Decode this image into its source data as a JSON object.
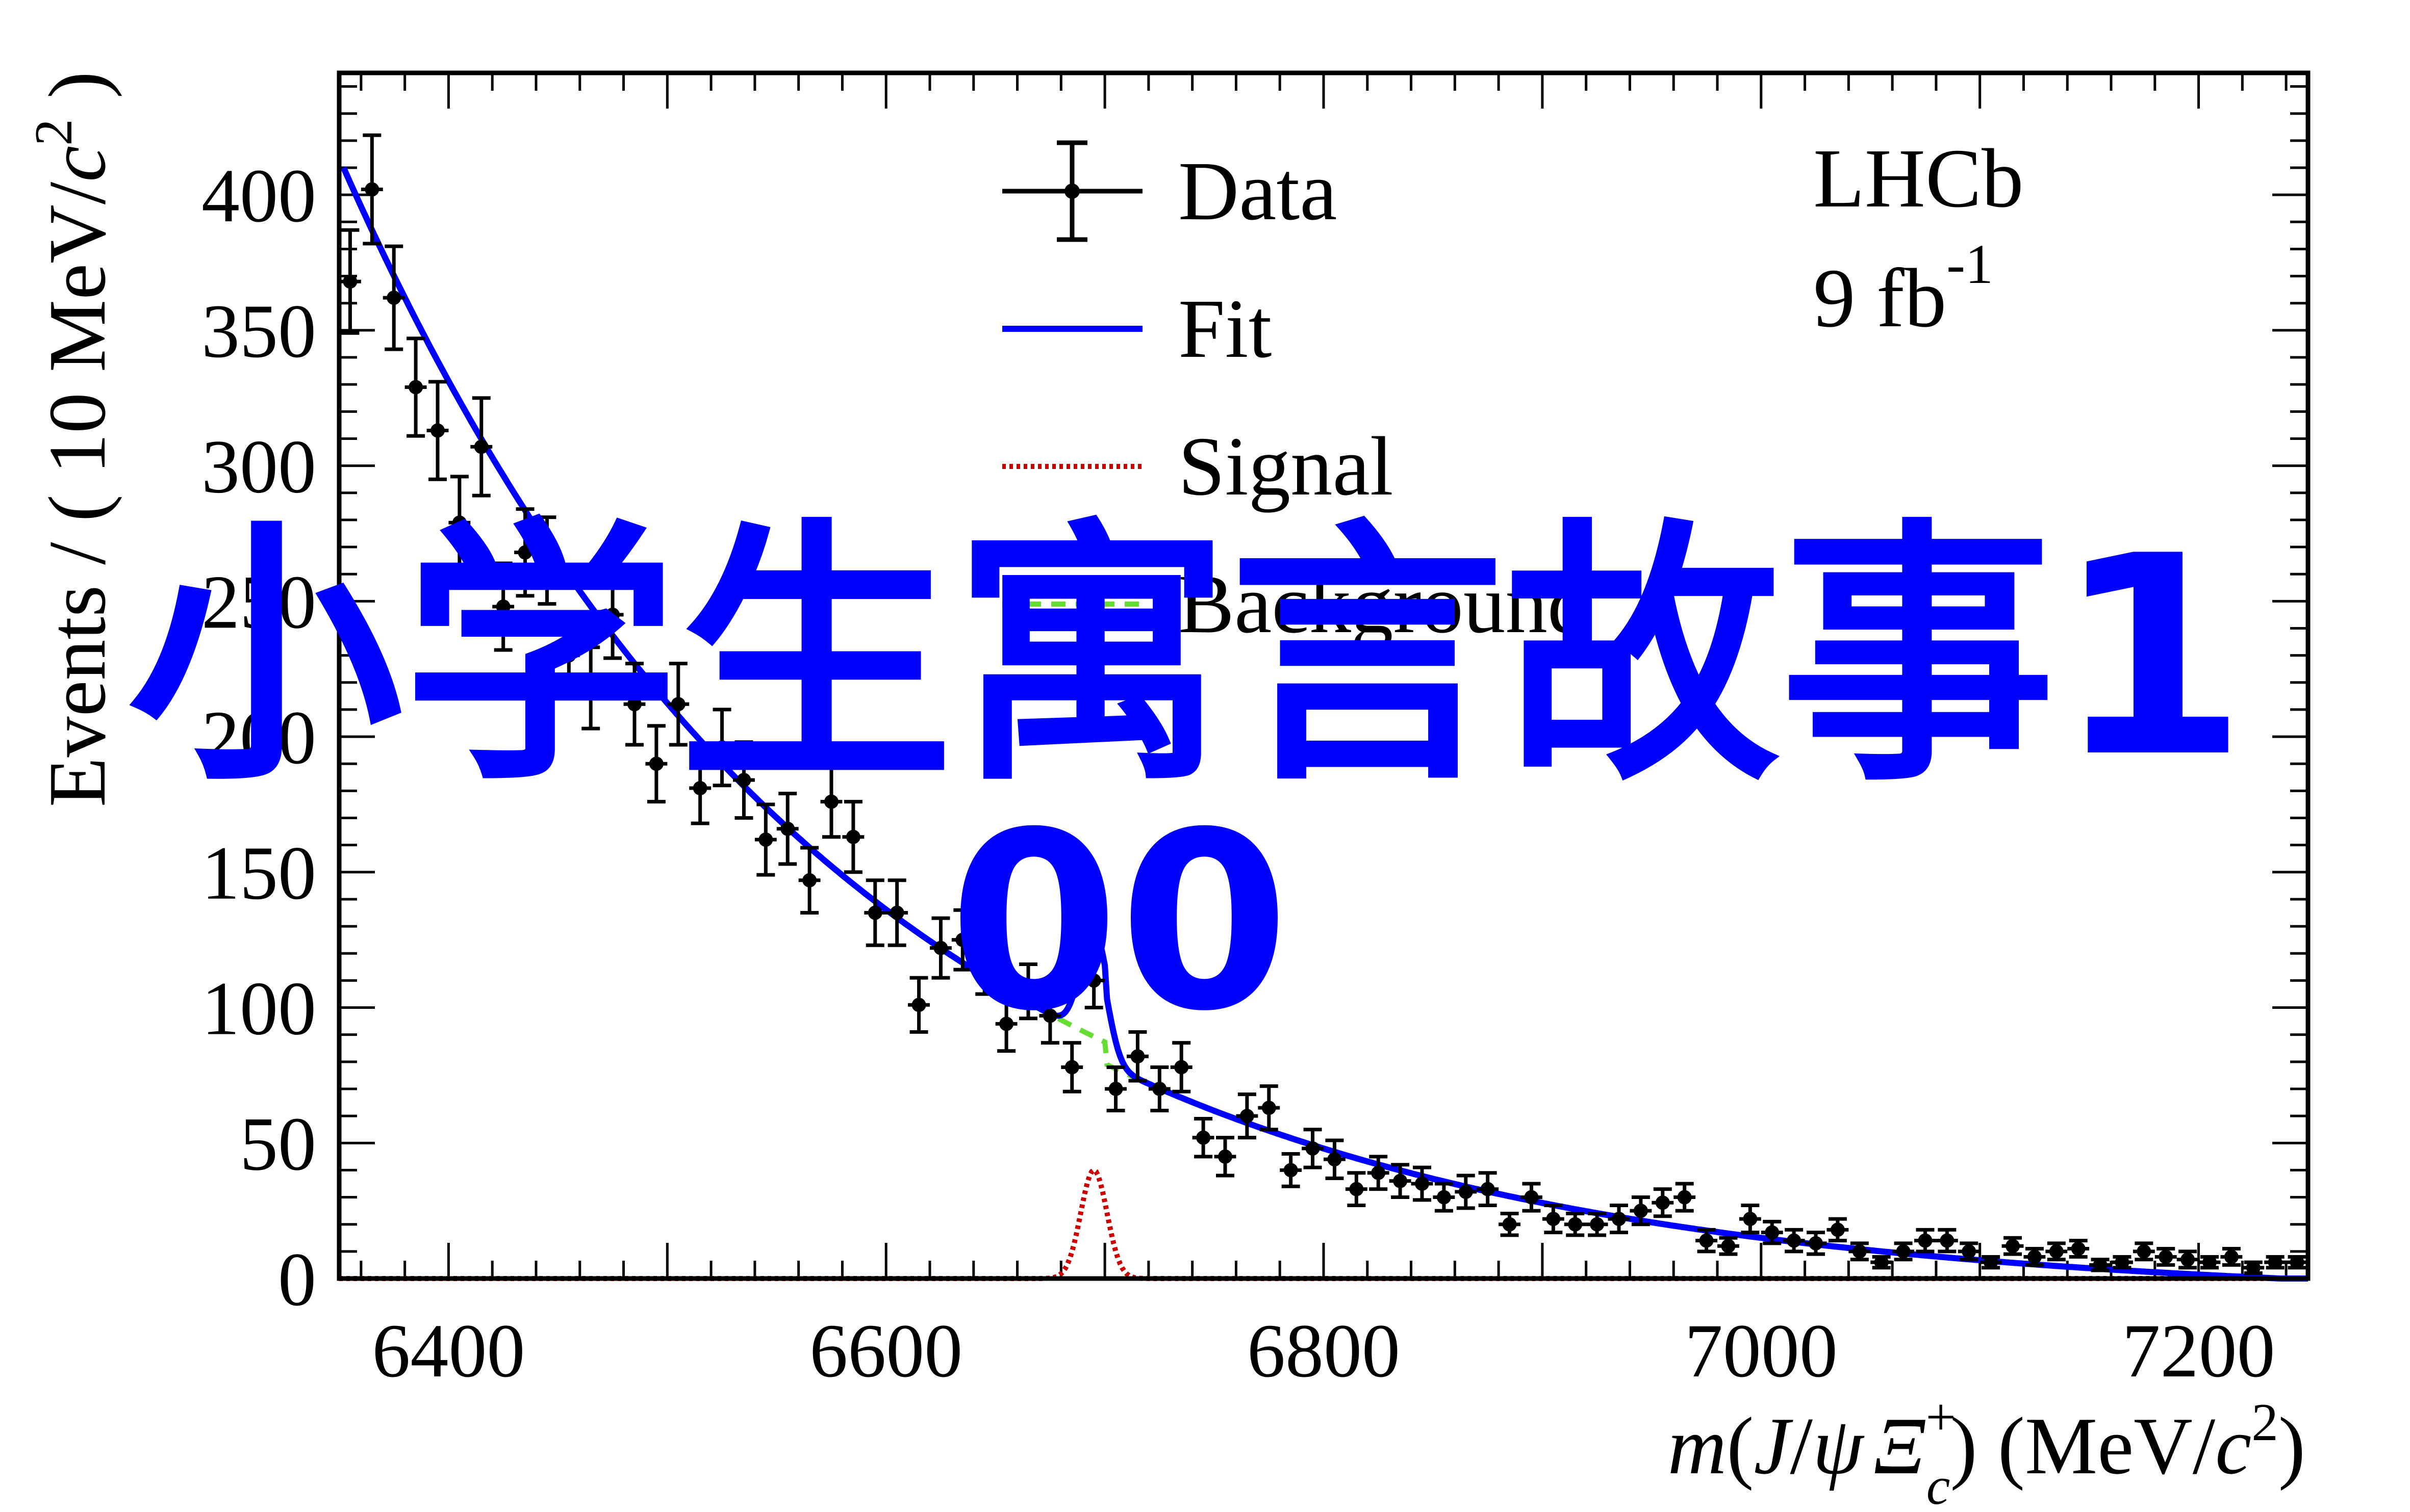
{
  "chart_data": {
    "type": "scatter",
    "title": "",
    "xlabel": {
      "m": "m",
      "open": "(",
      "J": "J",
      "slash": "/",
      "psi": "ψ",
      "xi": "Ξ",
      "xi_sup": "+",
      "xi_sub": "c",
      "close": ")",
      "units_open": "(MeV/",
      "c": "c",
      "c_sup": "2",
      "units_close": ")"
    },
    "ylabel": {
      "prefix": "Events / ( 10 MeV/",
      "c": "c",
      "c_sup": "2",
      "suffix": " )"
    },
    "xlim": [
      6350,
      7250
    ],
    "ylim": [
      0,
      445
    ],
    "x_ticks": [
      "6400",
      "6600",
      "6800",
      "7000",
      "7200"
    ],
    "y_ticks": [
      "0",
      "50",
      "100",
      "150",
      "200",
      "250",
      "300",
      "350",
      "400"
    ],
    "annotation": {
      "experiment": "LHCb",
      "lumi_value": "9 fb",
      "lumi_sup": "-1"
    },
    "legend": {
      "placement": "top-center",
      "entries": [
        {
          "label": "Data",
          "style": "errorbar",
          "color": "#000000"
        },
        {
          "label": "Fit",
          "style": "solid",
          "color": "#0000ff"
        },
        {
          "label": "Signal",
          "style": "dotted",
          "color": "#cc0000"
        },
        {
          "label": "Background",
          "style": "dashed",
          "color": "#66dd33"
        }
      ]
    },
    "series": [
      {
        "name": "Data",
        "x": [
          6355,
          6365,
          6375,
          6385,
          6395,
          6405,
          6415,
          6425,
          6435,
          6445,
          6455,
          6465,
          6475,
          6485,
          6495,
          6505,
          6515,
          6525,
          6535,
          6545,
          6555,
          6565,
          6575,
          6585,
          6595,
          6605,
          6615,
          6625,
          6635,
          6645,
          6655,
          6665,
          6675,
          6685,
          6695,
          6705,
          6715,
          6725,
          6735,
          6745,
          6755,
          6765,
          6775,
          6785,
          6795,
          6805,
          6815,
          6825,
          6835,
          6845,
          6855,
          6865,
          6875,
          6885,
          6895,
          6905,
          6915,
          6925,
          6935,
          6945,
          6955,
          6965,
          6975,
          6985,
          6995,
          7005,
          7015,
          7025,
          7035,
          7045,
          7055,
          7065,
          7075,
          7085,
          7095,
          7105,
          7115,
          7125,
          7135,
          7145,
          7155,
          7165,
          7175,
          7185,
          7195,
          7205,
          7215,
          7225,
          7235,
          7245
        ],
        "y": [
          368,
          402,
          362,
          329,
          313,
          279,
          307,
          248,
          268,
          265,
          230,
          218,
          245,
          212,
          190,
          212,
          181,
          196,
          184,
          162,
          166,
          147,
          176,
          163,
          135,
          135,
          101,
          122,
          125,
          116,
          94,
          106,
          97,
          78,
          110,
          70,
          82,
          70,
          78,
          52,
          45,
          60,
          63,
          40,
          48,
          44,
          33,
          39,
          36,
          35,
          30,
          32,
          33,
          20,
          30,
          22,
          20,
          20,
          22,
          25,
          28,
          30,
          14,
          12,
          22,
          17,
          14,
          13,
          18,
          10,
          6,
          10,
          14,
          14,
          10,
          6,
          12,
          8,
          10,
          11,
          5,
          6,
          10,
          8,
          7,
          6,
          8,
          4,
          6,
          6
        ],
        "yerr": [
          19,
          20,
          19,
          18,
          18,
          17,
          18,
          16,
          16,
          16,
          15,
          15,
          16,
          15,
          14,
          15,
          13,
          14,
          14,
          13,
          13,
          12,
          13,
          13,
          12,
          12,
          10,
          11,
          11,
          11,
          10,
          10,
          10,
          9,
          10,
          8,
          9,
          8,
          9,
          7,
          7,
          8,
          8,
          6,
          7,
          7,
          6,
          6,
          6,
          6,
          5,
          6,
          6,
          4,
          5,
          5,
          4,
          4,
          5,
          5,
          5,
          5,
          4,
          3,
          5,
          4,
          4,
          4,
          4,
          3,
          2,
          3,
          4,
          4,
          3,
          2,
          3,
          3,
          3,
          3,
          2,
          2,
          3,
          3,
          3,
          2,
          3,
          2,
          2,
          2
        ],
        "color": "#000000"
      },
      {
        "name": "Fit",
        "function": "background + signal",
        "color": "#0000ff"
      },
      {
        "name": "Signal",
        "function": "gaussian",
        "mean": 6695,
        "sigma": 6,
        "amplitude": 40,
        "color": "#cc0000"
      },
      {
        "name": "Background",
        "function": "exponential_with_threshold_step",
        "amplitude_at_6352": 410,
        "decay_length": 225,
        "step_at": 6700,
        "step_drop": 8,
        "color": "#66dd33"
      }
    ]
  },
  "overlay": {
    "line1": "小学生寓言故事1",
    "line2": "00",
    "color": "#0000ff"
  }
}
